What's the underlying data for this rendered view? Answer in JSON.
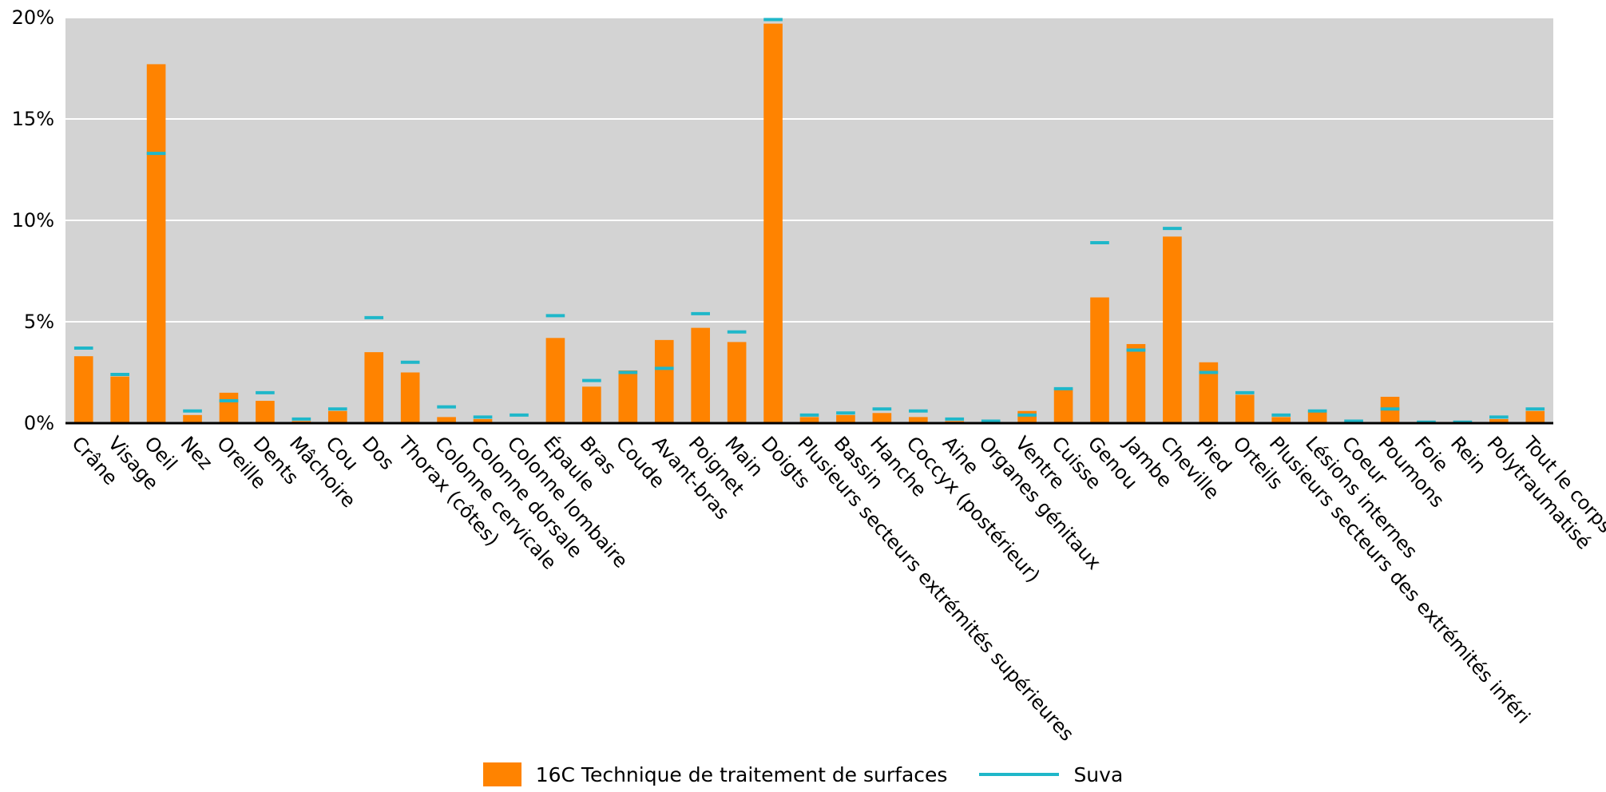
{
  "chart_data": {
    "type": "bar",
    "categories": [
      "Crâne",
      "Visage",
      "Oeil",
      "Nez",
      "Oreille",
      "Dents",
      "Mâchoire",
      "Cou",
      "Dos",
      "Thorax (côtes)",
      "Colonne cervicale",
      "Colonne dorsale",
      "Colonne lombaire",
      "Épaule",
      "Bras",
      "Coude",
      "Avant-bras",
      "Poignet",
      "Main",
      "Doigts",
      "Plusieurs secteurs extrémités supérieures",
      "Bassin",
      "Hanche",
      "Coccyx (postérieur)",
      "Aine",
      "Organes génitaux",
      "Ventre",
      "Cuisse",
      "Genou",
      "Jambe",
      "Cheville",
      "Pied",
      "Orteils",
      "Plusieurs secteurs des extrémités inféri",
      "Lésions internes",
      "Coeur",
      "Poumons",
      "Foie",
      "Rein",
      "Polytraumatisé",
      "Tout le corps"
    ],
    "series": [
      {
        "name": "16C Technique de traitement de surfaces",
        "kind": "bar",
        "color": "#FF8300",
        "values": [
          3.3,
          2.3,
          17.7,
          0.4,
          1.5,
          1.1,
          0.1,
          0.6,
          3.5,
          2.5,
          0.3,
          0.2,
          0.0,
          4.2,
          1.8,
          2.6,
          4.1,
          4.7,
          4.0,
          19.7,
          0.3,
          0.4,
          0.5,
          0.3,
          0.1,
          0.0,
          0.6,
          1.7,
          6.2,
          3.9,
          9.2,
          3.0,
          1.4,
          0.3,
          0.6,
          0.0,
          1.3,
          0.0,
          0.0,
          0.2,
          0.6
        ]
      },
      {
        "name": "Suva",
        "kind": "marker",
        "color": "#1FB7C9",
        "values": [
          3.7,
          2.4,
          13.3,
          0.6,
          1.1,
          1.5,
          0.2,
          0.7,
          5.2,
          3.0,
          0.8,
          0.3,
          0.4,
          5.3,
          2.1,
          2.5,
          2.7,
          5.4,
          4.5,
          19.9,
          0.4,
          0.5,
          0.7,
          0.6,
          0.2,
          0.1,
          0.4,
          1.7,
          8.9,
          3.6,
          9.6,
          2.5,
          1.5,
          0.4,
          0.6,
          0.1,
          0.7,
          0.05,
          0.05,
          0.3,
          0.7
        ]
      }
    ],
    "y_ticks": [
      "0%",
      "5%",
      "10%",
      "15%",
      "20%"
    ],
    "ylim": [
      0,
      20
    ],
    "grid": true,
    "plot_background": "#D3D3D3",
    "legend_position": "bottom-center",
    "title": "",
    "xlabel": "",
    "ylabel": ""
  },
  "legend": {
    "bar_label": "16C Technique de traitement de surfaces",
    "line_label": "Suva"
  }
}
